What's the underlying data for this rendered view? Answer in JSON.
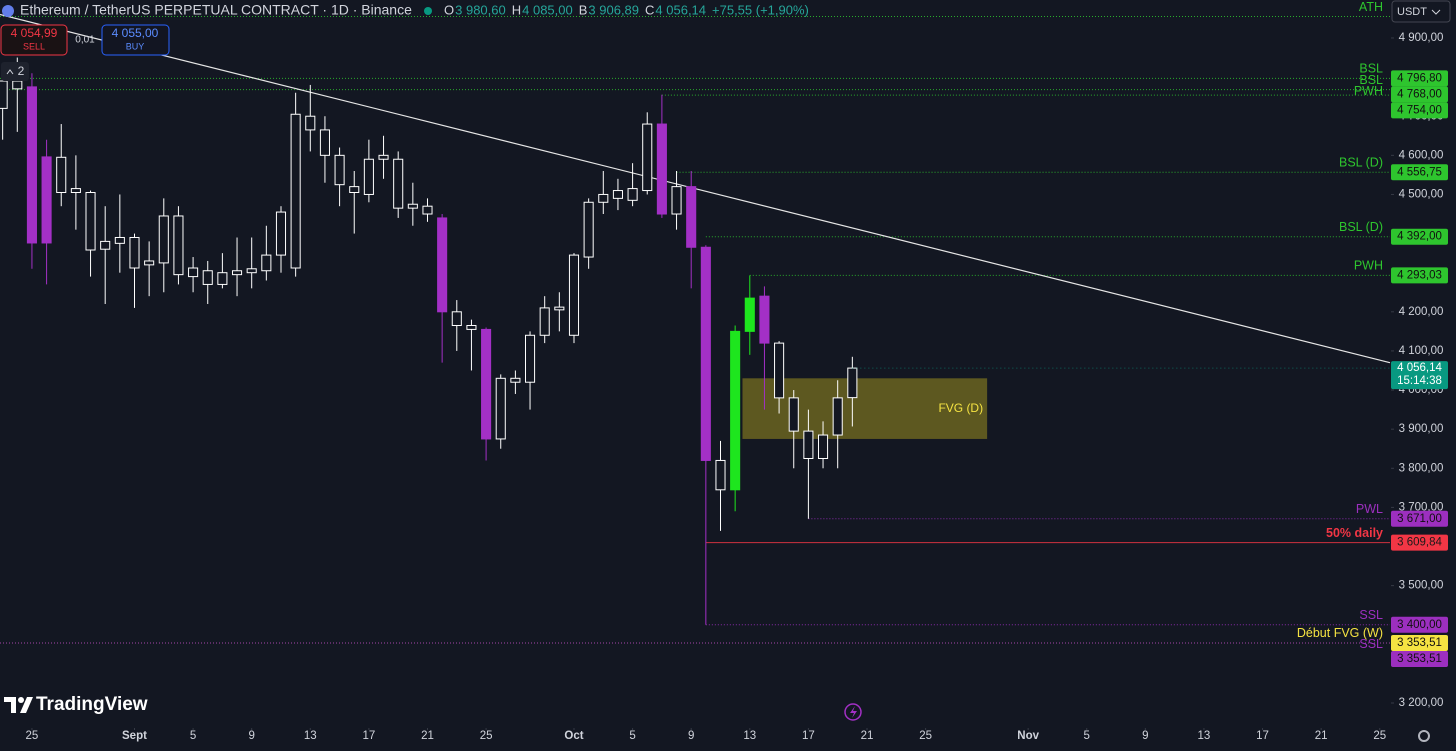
{
  "header": {
    "title": "Ethereum / TetherUS PERPETUAL CONTRACT · 1D · Binance",
    "ohlc": [
      [
        "O",
        "3 980,60"
      ],
      [
        "H",
        "4 085,00"
      ],
      [
        "B",
        "3 906,89"
      ],
      [
        "C",
        "4 056,14"
      ]
    ],
    "change": "+75,55 (+1,90%)"
  },
  "trade": {
    "sell_price": "4 054,99",
    "sell": "SELL",
    "spread": "0,01",
    "buy_price": "4 055,00",
    "buy": "BUY"
  },
  "indicators": 2,
  "logo": "TradingView",
  "currency": "USDT",
  "chart_data": {
    "type": "candlestick",
    "x": [
      -2,
      -1,
      0,
      1,
      2,
      3,
      4,
      5,
      6,
      7,
      8,
      9,
      10,
      11,
      12,
      13,
      14,
      15,
      16,
      17,
      18,
      19,
      20,
      21,
      22,
      23,
      24,
      25,
      26,
      27,
      28,
      29,
      30,
      31,
      32,
      33,
      34,
      35,
      36,
      37,
      38,
      39,
      40,
      41,
      42,
      43,
      44,
      45,
      46,
      47,
      48,
      49,
      50,
      51,
      52,
      53,
      54,
      55,
      56
    ],
    "open": [
      4720,
      4770,
      4775,
      4596,
      4505,
      4505,
      4358,
      4360,
      4375,
      4312,
      4320,
      4325,
      4295,
      4290,
      4270,
      4270,
      4295,
      4300,
      4305,
      4345,
      4312,
      4700,
      4665,
      4600,
      4520,
      4500,
      4590,
      4590,
      4475,
      4470,
      4440,
      4200,
      4165,
      4155,
      3875,
      4030,
      4020,
      4140,
      4205,
      4140,
      4340,
      4480,
      4490,
      4485,
      4510,
      4680,
      4450,
      4520,
      4365,
      3820,
      3745,
      4150,
      4240,
      4120,
      3980,
      3895,
      3825,
      3885,
      3980.6
    ],
    "high": [
      4830,
      4850,
      4810,
      4640,
      4680,
      4600,
      4510,
      4470,
      4500,
      4400,
      4380,
      4490,
      4470,
      4340,
      4330,
      4350,
      4390,
      4390,
      4420,
      4470,
      4760,
      4780,
      4700,
      4620,
      4560,
      4640,
      4650,
      4610,
      4530,
      4490,
      4450,
      4230,
      4180,
      4160,
      4040,
      4050,
      4150,
      4240,
      4250,
      4350,
      4490,
      4560,
      4540,
      4580,
      4710,
      4755,
      4560,
      4560,
      4370,
      3870,
      4165,
      4293,
      4265,
      4125,
      4000,
      3950,
      3920,
      4025,
      4085
    ],
    "low": [
      4640,
      4660,
      4310,
      4270,
      4470,
      4410,
      4290,
      4220,
      4300,
      4210,
      4240,
      4250,
      4270,
      4250,
      4220,
      4260,
      4240,
      4260,
      4280,
      4300,
      4290,
      4610,
      4530,
      4470,
      4400,
      4480,
      4540,
      4440,
      4420,
      4430,
      4070,
      4100,
      4050,
      3820,
      3850,
      3990,
      3950,
      4120,
      4150,
      4120,
      4310,
      4450,
      4460,
      4470,
      4500,
      4440,
      4410,
      4260,
      3400,
      3640,
      3690,
      4090,
      3950,
      3940,
      3800,
      3671,
      3800,
      3800,
      3906.89
    ],
    "close": [
      4790,
      4790,
      4376,
      4376,
      4595,
      4515,
      4505,
      4380,
      4390,
      4390,
      4330,
      4445,
      4445,
      4312,
      4305,
      4300,
      4305,
      4310,
      4345,
      4455,
      4705,
      4665,
      4600,
      4525,
      4505,
      4590,
      4600,
      4465,
      4465,
      4450,
      4200,
      4165,
      4155,
      3875,
      4030,
      4020,
      4140,
      4210,
      4212,
      4345,
      4480,
      4500,
      4510,
      4515,
      4680,
      4450,
      4520,
      4365,
      3820,
      3745,
      4150,
      4235,
      4120,
      3980,
      3895,
      3825,
      3885,
      3980,
      4056.14
    ],
    "candle_colors": [
      "#ffffff",
      "#ffffff",
      "#a330c6",
      "#a330c6",
      "#ffffff",
      "#ffffff",
      "#ffffff",
      "#ffffff",
      "#ffffff",
      "#ffffff",
      "#ffffff",
      "#ffffff",
      "#ffffff",
      "#ffffff",
      "#ffffff",
      "#ffffff",
      "#ffffff",
      "#ffffff",
      "#ffffff",
      "#ffffff",
      "#ffffff",
      "#ffffff",
      "#ffffff",
      "#ffffff",
      "#ffffff",
      "#ffffff",
      "#ffffff",
      "#ffffff",
      "#ffffff",
      "#ffffff",
      "#a330c6",
      "#ffffff",
      "#ffffff",
      "#a330c6",
      "#ffffff",
      "#ffffff",
      "#ffffff",
      "#ffffff",
      "#ffffff",
      "#ffffff",
      "#ffffff",
      "#ffffff",
      "#ffffff",
      "#ffffff",
      "#ffffff",
      "#a330c6",
      "#ffffff",
      "#a330c6",
      "#a330c6",
      "#ffffff",
      "#1ee61e",
      "#1ee61e",
      "#a330c6",
      "#ffffff",
      "#ffffff",
      "#ffffff",
      "#ffffff",
      "#ffffff",
      "#ffffff"
    ],
    "hollow_color": "#ffffff",
    "xlim": [
      -2.18,
      92.7
    ],
    "xticks": [
      {
        "value": 0,
        "label": "25"
      },
      {
        "value": 7,
        "label": "Sept"
      },
      {
        "value": 11,
        "label": "5"
      },
      {
        "value": 15,
        "label": "9"
      },
      {
        "value": 19,
        "label": "13"
      },
      {
        "value": 23,
        "label": "17"
      },
      {
        "value": 27,
        "label": "21"
      },
      {
        "value": 31,
        "label": "25"
      },
      {
        "value": 37,
        "label": "Oct"
      },
      {
        "value": 41,
        "label": "5"
      },
      {
        "value": 45,
        "label": "9"
      },
      {
        "value": 49,
        "label": "13"
      },
      {
        "value": 53,
        "label": "17"
      },
      {
        "value": 57,
        "label": "21"
      },
      {
        "value": 61,
        "label": "25"
      },
      {
        "value": 68,
        "label": "Nov"
      },
      {
        "value": 72,
        "label": "5"
      },
      {
        "value": 76,
        "label": "9"
      },
      {
        "value": 80,
        "label": "13"
      },
      {
        "value": 84,
        "label": "17"
      },
      {
        "value": 88,
        "label": "21"
      },
      {
        "value": 92,
        "label": "25"
      }
    ],
    "ylim": [
      3151.4,
      4997.1
    ],
    "yticks": [
      {
        "value": 3200,
        "label": "3 200,00"
      },
      {
        "value": 3500,
        "label": "3 500,00"
      },
      {
        "value": 3700,
        "label": "3 700,00"
      },
      {
        "value": 3800,
        "label": "3 800,00"
      },
      {
        "value": 3900,
        "label": "3 900,00"
      },
      {
        "value": 4000,
        "label": "4 000,00"
      },
      {
        "value": 4100,
        "label": "4 100,00"
      },
      {
        "value": 4200,
        "label": "4 200,00"
      },
      {
        "value": 4500,
        "label": "4 500,00"
      },
      {
        "value": 4600,
        "label": "4 600,00"
      },
      {
        "value": 4700,
        "label": "4 700,00"
      },
      {
        "value": 4900,
        "label": "4 900,00"
      }
    ],
    "levels": [
      {
        "label": "ATH",
        "value": 4955,
        "color": "#2ec52e",
        "x_start": -2.18
      },
      {
        "label": "BSL",
        "value": 4796.8,
        "value_label": "4 796,80",
        "color": "#2ec52e",
        "x_start": -2.18
      },
      {
        "label": "BSL",
        "value": 4768,
        "value_label": "4 768,00",
        "color": "#2ec52e",
        "x_start": -2.18
      },
      {
        "label": "PWH",
        "value": 4754,
        "value_label": "4 754,00",
        "color": "#2ec52e",
        "x_start": 43
      },
      {
        "label": "BSL (D)",
        "value": 4556.75,
        "value_label": "4 556,75",
        "color": "#2ec52e",
        "x_start": 44
      },
      {
        "label": "BSL (D)",
        "value": 4392,
        "value_label": "4 392,00",
        "color": "#2ec52e",
        "x_start": 46
      },
      {
        "label": "PWH",
        "value": 4293.03,
        "value_label": "4 293,03",
        "color": "#2ec52e",
        "x_start": 49
      },
      {
        "label": "PWL",
        "value": 3671,
        "value_label": "3 671,00",
        "color": "#9c2fbf",
        "x_start": 53
      },
      {
        "label": "50% daily",
        "value": 3609.84,
        "value_label": "3 609,84",
        "color": "#f23645",
        "x_start": 46,
        "solid": true
      },
      {
        "label": "SSL",
        "value": 3400,
        "value_label": "3 400,00",
        "color": "#9c2fbf",
        "x_start": 46
      },
      {
        "label": "Début FVG (W)",
        "value": 3353.51,
        "value_label": "3 353,51",
        "color": "#f5e342",
        "x_start": -2.18
      },
      {
        "label": "SSL",
        "value": 3353.51,
        "value_label": "3 353,51",
        "color": "#9c2fbf",
        "x_start": -2.18
      }
    ],
    "zones": [
      {
        "label": "FVG (D)",
        "x": [
          48.5,
          65.2
        ],
        "values": [
          3875,
          4030
        ],
        "color": "#6b6420"
      }
    ],
    "trendline": {
      "x": [
        -2.18,
        92.7
      ],
      "values": [
        4960,
        4070
      ],
      "color": "#e6e6e6"
    },
    "last_price": {
      "value_label": "4 056,14",
      "countdown": "15:14:38",
      "color": "#089981"
    }
  }
}
